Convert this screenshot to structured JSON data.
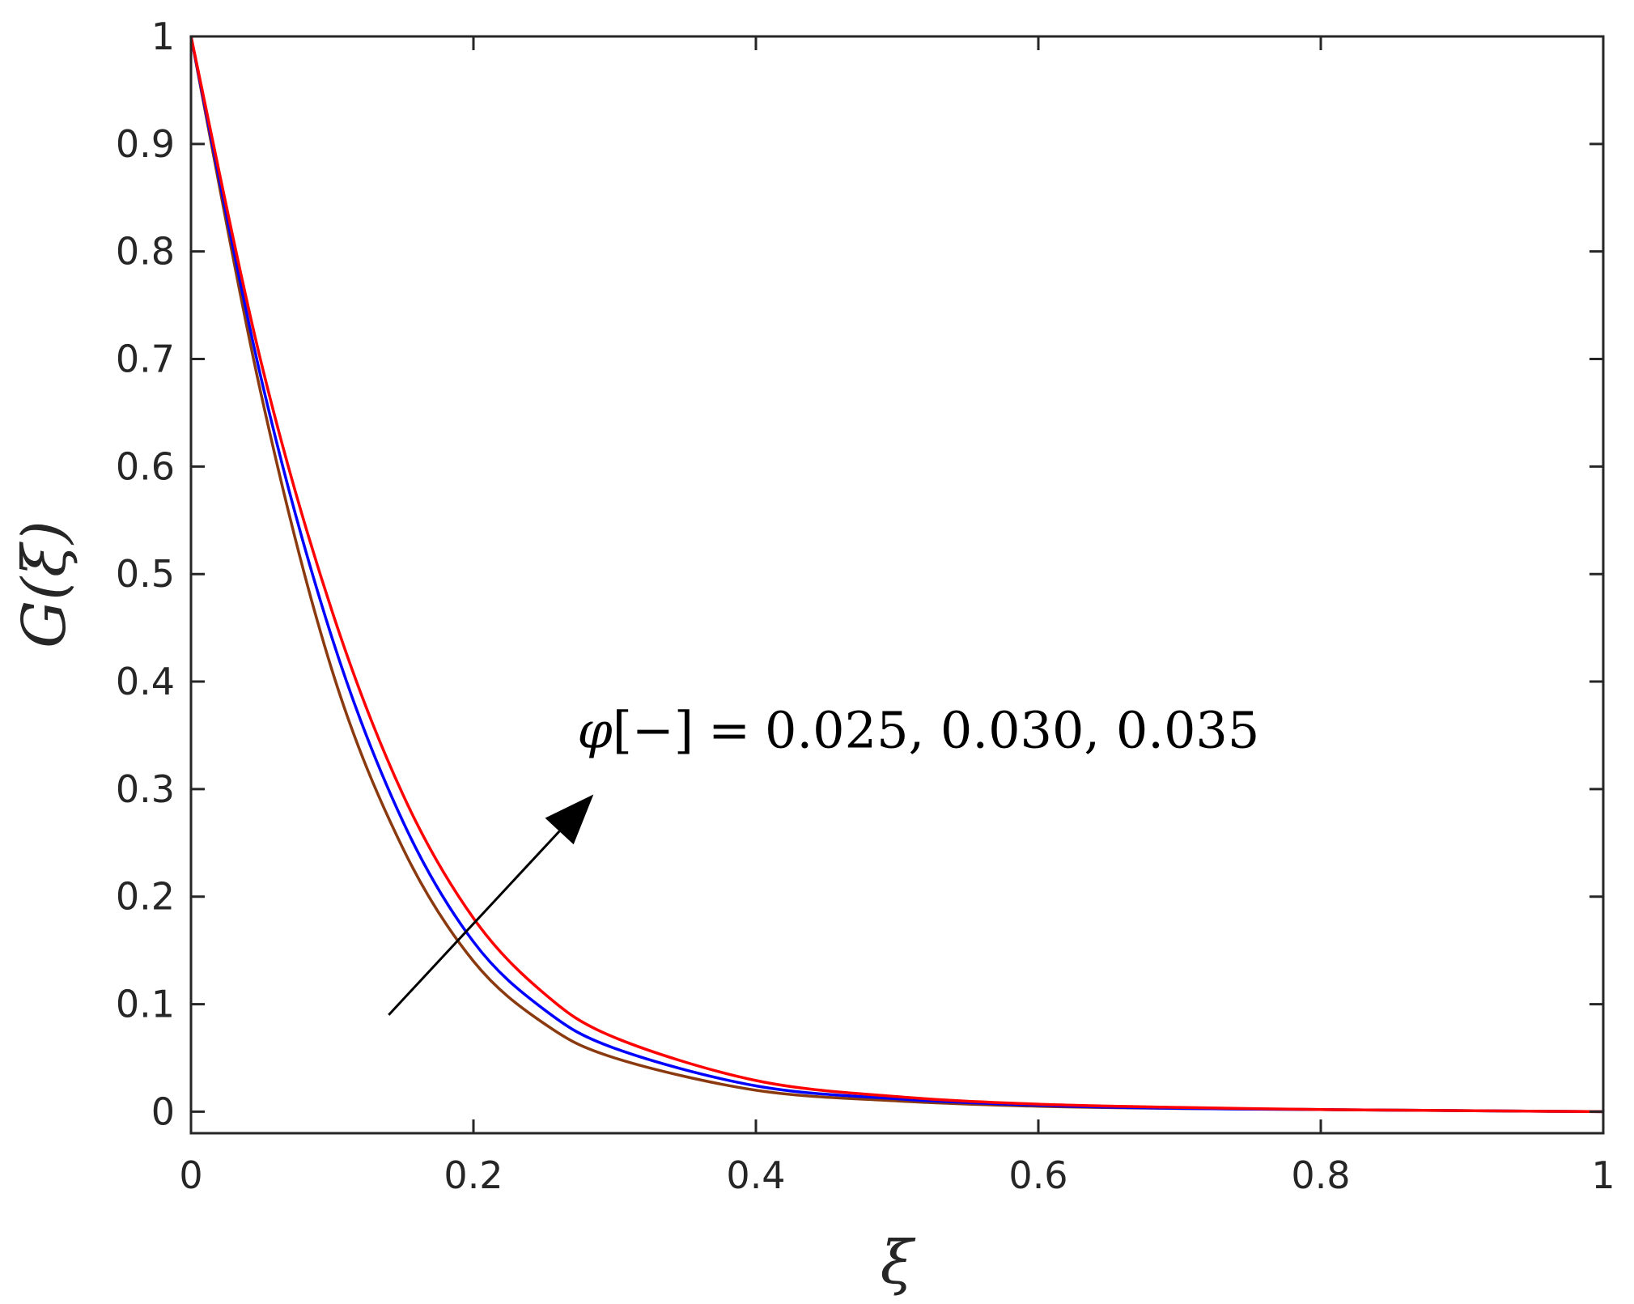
{
  "chart_data": {
    "type": "line",
    "xlabel": "ξ",
    "ylabel": "G(ξ)",
    "xlim": [
      0,
      1
    ],
    "ylim": [
      -0.02,
      1
    ],
    "grid": false,
    "xticks": [
      "0",
      "0.2",
      "0.4",
      "0.6",
      "0.8",
      "1"
    ],
    "yticks": [
      "0",
      "0.1",
      "0.2",
      "0.3",
      "0.4",
      "0.5",
      "0.6",
      "0.7",
      "0.8",
      "0.9",
      "1"
    ],
    "x": [
      0,
      0.05,
      0.1,
      0.15,
      0.2,
      0.25,
      0.3,
      0.4,
      0.5,
      0.6,
      0.7,
      0.8,
      0.9,
      1.0
    ],
    "series": [
      {
        "color": "#8B3A0F",
        "values": [
          1.0,
          0.665,
          0.41,
          0.245,
          0.14,
          0.082,
          0.05,
          0.02,
          0.01,
          0.005,
          0.003,
          0.002,
          0.001,
          0.0
        ]
      },
      {
        "color": "#0000FF",
        "values": [
          1.0,
          0.68,
          0.44,
          0.27,
          0.158,
          0.095,
          0.059,
          0.024,
          0.012,
          0.006,
          0.003,
          0.002,
          0.001,
          0.0
        ]
      },
      {
        "color": "#FF0000",
        "values": [
          1.0,
          0.695,
          0.465,
          0.295,
          0.18,
          0.11,
          0.069,
          0.029,
          0.014,
          0.007,
          0.004,
          0.002,
          0.001,
          0.0
        ]
      }
    ],
    "annotation": {
      "symbol": "φ",
      "bracket": "[−]",
      "equals": "=",
      "values": "0.025, 0.030, 0.035",
      "arrow_from": [
        0.14,
        0.09
      ],
      "arrow_to": [
        0.285,
        0.295
      ]
    }
  }
}
